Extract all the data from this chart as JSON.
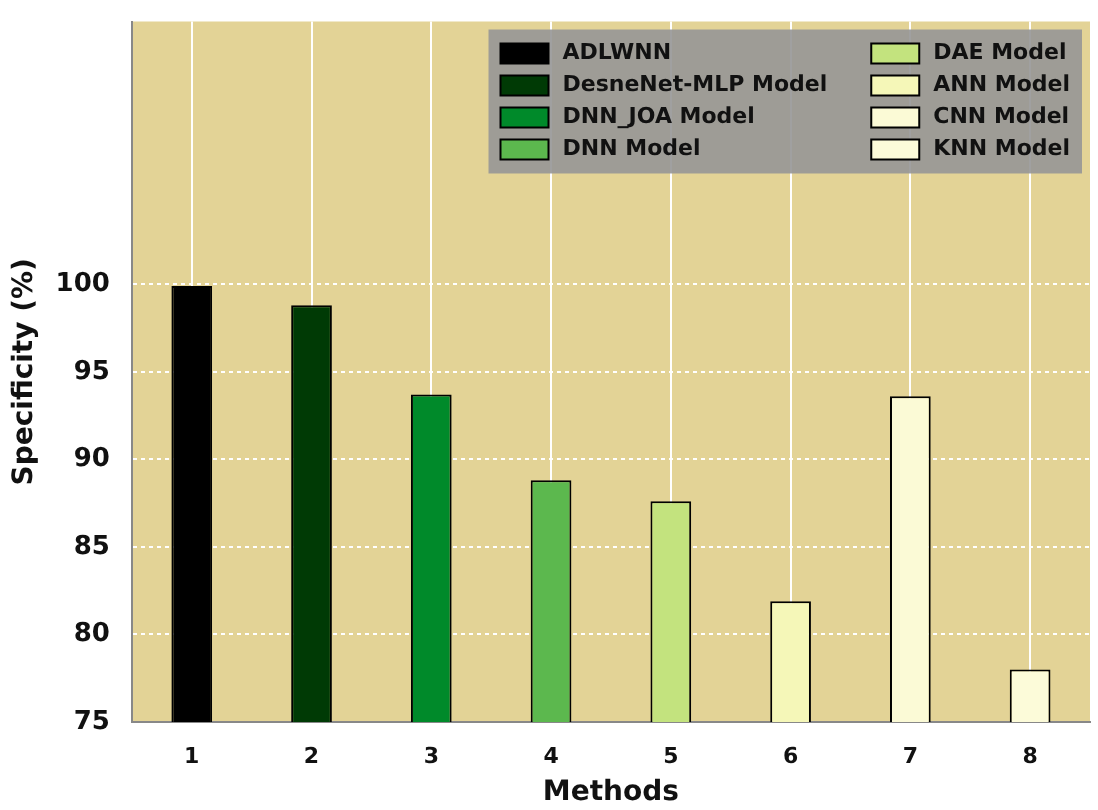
{
  "chart_data": {
    "type": "bar",
    "xlabel": "Methods",
    "ylabel": "Specificity (%)",
    "categories": [
      "1",
      "2",
      "3",
      "4",
      "5",
      "6",
      "7",
      "8"
    ],
    "series": [
      {
        "name": "ADLWNN",
        "color": "#000000",
        "values": [
          99.9,
          null,
          null,
          null,
          null,
          null,
          null,
          null
        ]
      },
      {
        "name": "DesneNet-MLP Model",
        "color": "#003a05",
        "values": [
          null,
          98.8,
          null,
          null,
          null,
          null,
          null,
          null
        ]
      },
      {
        "name": "DNN_JOA Model",
        "color": "#008a2a",
        "values": [
          null,
          null,
          93.7,
          null,
          null,
          null,
          null,
          null
        ]
      },
      {
        "name": "DNN Model",
        "color": "#5cb84e",
        "values": [
          null,
          null,
          null,
          88.8,
          null,
          null,
          null,
          null
        ]
      },
      {
        "name": "DAE Model",
        "color": "#c3e37e",
        "values": [
          null,
          null,
          null,
          null,
          87.6,
          null,
          null,
          null
        ]
      },
      {
        "name": "ANN Model",
        "color": "#f5f7b8",
        "values": [
          null,
          null,
          null,
          null,
          null,
          81.9,
          null,
          null
        ]
      },
      {
        "name": "CNN Model",
        "color": "#fbfad6",
        "values": [
          null,
          null,
          null,
          null,
          null,
          null,
          93.6,
          null
        ]
      },
      {
        "name": "KNN Model",
        "color": "#fcfbd9",
        "values": [
          null,
          null,
          null,
          null,
          null,
          null,
          null,
          78.0
        ]
      }
    ],
    "ylim": [
      75,
      115
    ],
    "yticks": [
      75,
      80,
      85,
      90,
      95,
      100
    ],
    "grid": true,
    "legend": "top right"
  }
}
